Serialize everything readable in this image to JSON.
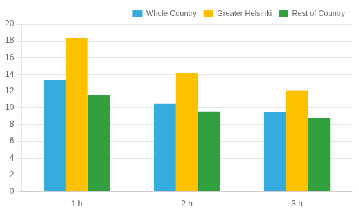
{
  "chart_data": {
    "type": "bar",
    "categories": [
      "1 h",
      "2 h",
      "3 h"
    ],
    "series": [
      {
        "name": "Whole Country",
        "color": "#35ABDF",
        "values": [
          13.3,
          10.5,
          9.5
        ]
      },
      {
        "name": "Greater Helsinki",
        "color": "#FFC000",
        "values": [
          18.35,
          14.2,
          12.1
        ]
      },
      {
        "name": "Rest of Country",
        "color": "#33A040",
        "values": [
          11.55,
          9.6,
          8.75
        ]
      }
    ],
    "ylim": [
      0,
      20
    ],
    "yticks": [
      0,
      2,
      4,
      6,
      8,
      10,
      12,
      14,
      16,
      18,
      20
    ],
    "grid": true,
    "legend": "upper right"
  }
}
